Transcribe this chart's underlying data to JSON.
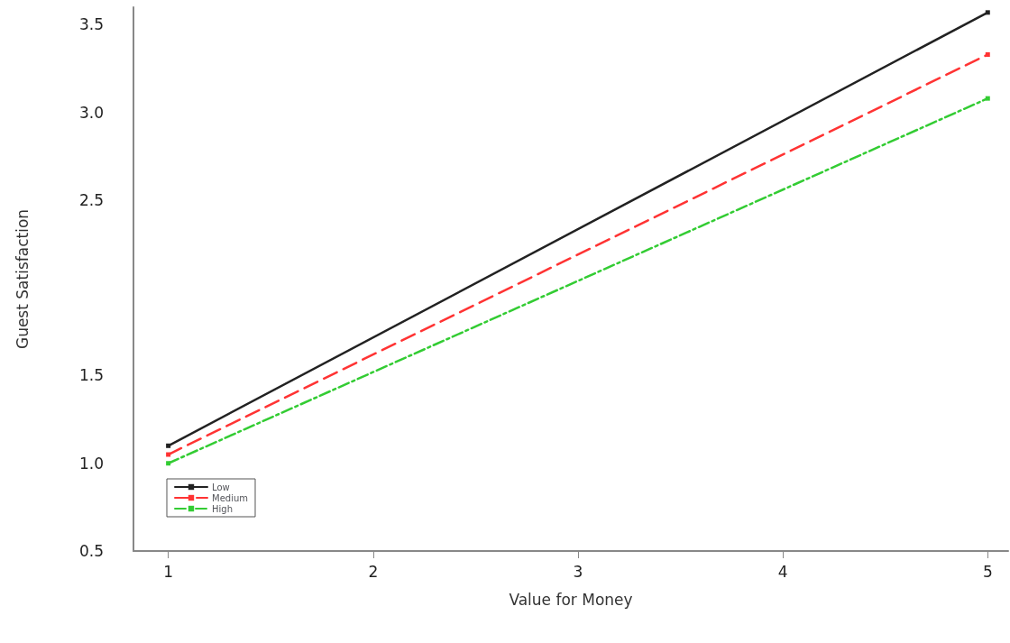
{
  "chart_data": {
    "type": "line",
    "xlabel": "Value for Money",
    "ylabel": "Guest Satisfaction",
    "x": [
      1,
      5
    ],
    "series": [
      {
        "name": "Low",
        "color": "#222222",
        "values": [
          1.1,
          3.57
        ],
        "line_style": "solid"
      },
      {
        "name": "Medium",
        "color": "#ff3333",
        "values": [
          1.05,
          3.33
        ],
        "line_style": "dashed"
      },
      {
        "name": "High",
        "color": "#33cc33",
        "values": [
          1.0,
          3.08
        ],
        "line_style": "dotted"
      }
    ],
    "xlim": [
      0.83,
      5.1
    ],
    "xticks": [
      1,
      2,
      3,
      4,
      5
    ],
    "ylim": [
      0.5,
      3.6
    ],
    "yticks": [
      0.5,
      {
        "value": 1,
        "label": "1.0"
      },
      1.5,
      2.5,
      {
        "value": 3,
        "label": "3.0"
      },
      3.5
    ],
    "grid": false,
    "legend": "bottom left",
    "marker": "square"
  }
}
